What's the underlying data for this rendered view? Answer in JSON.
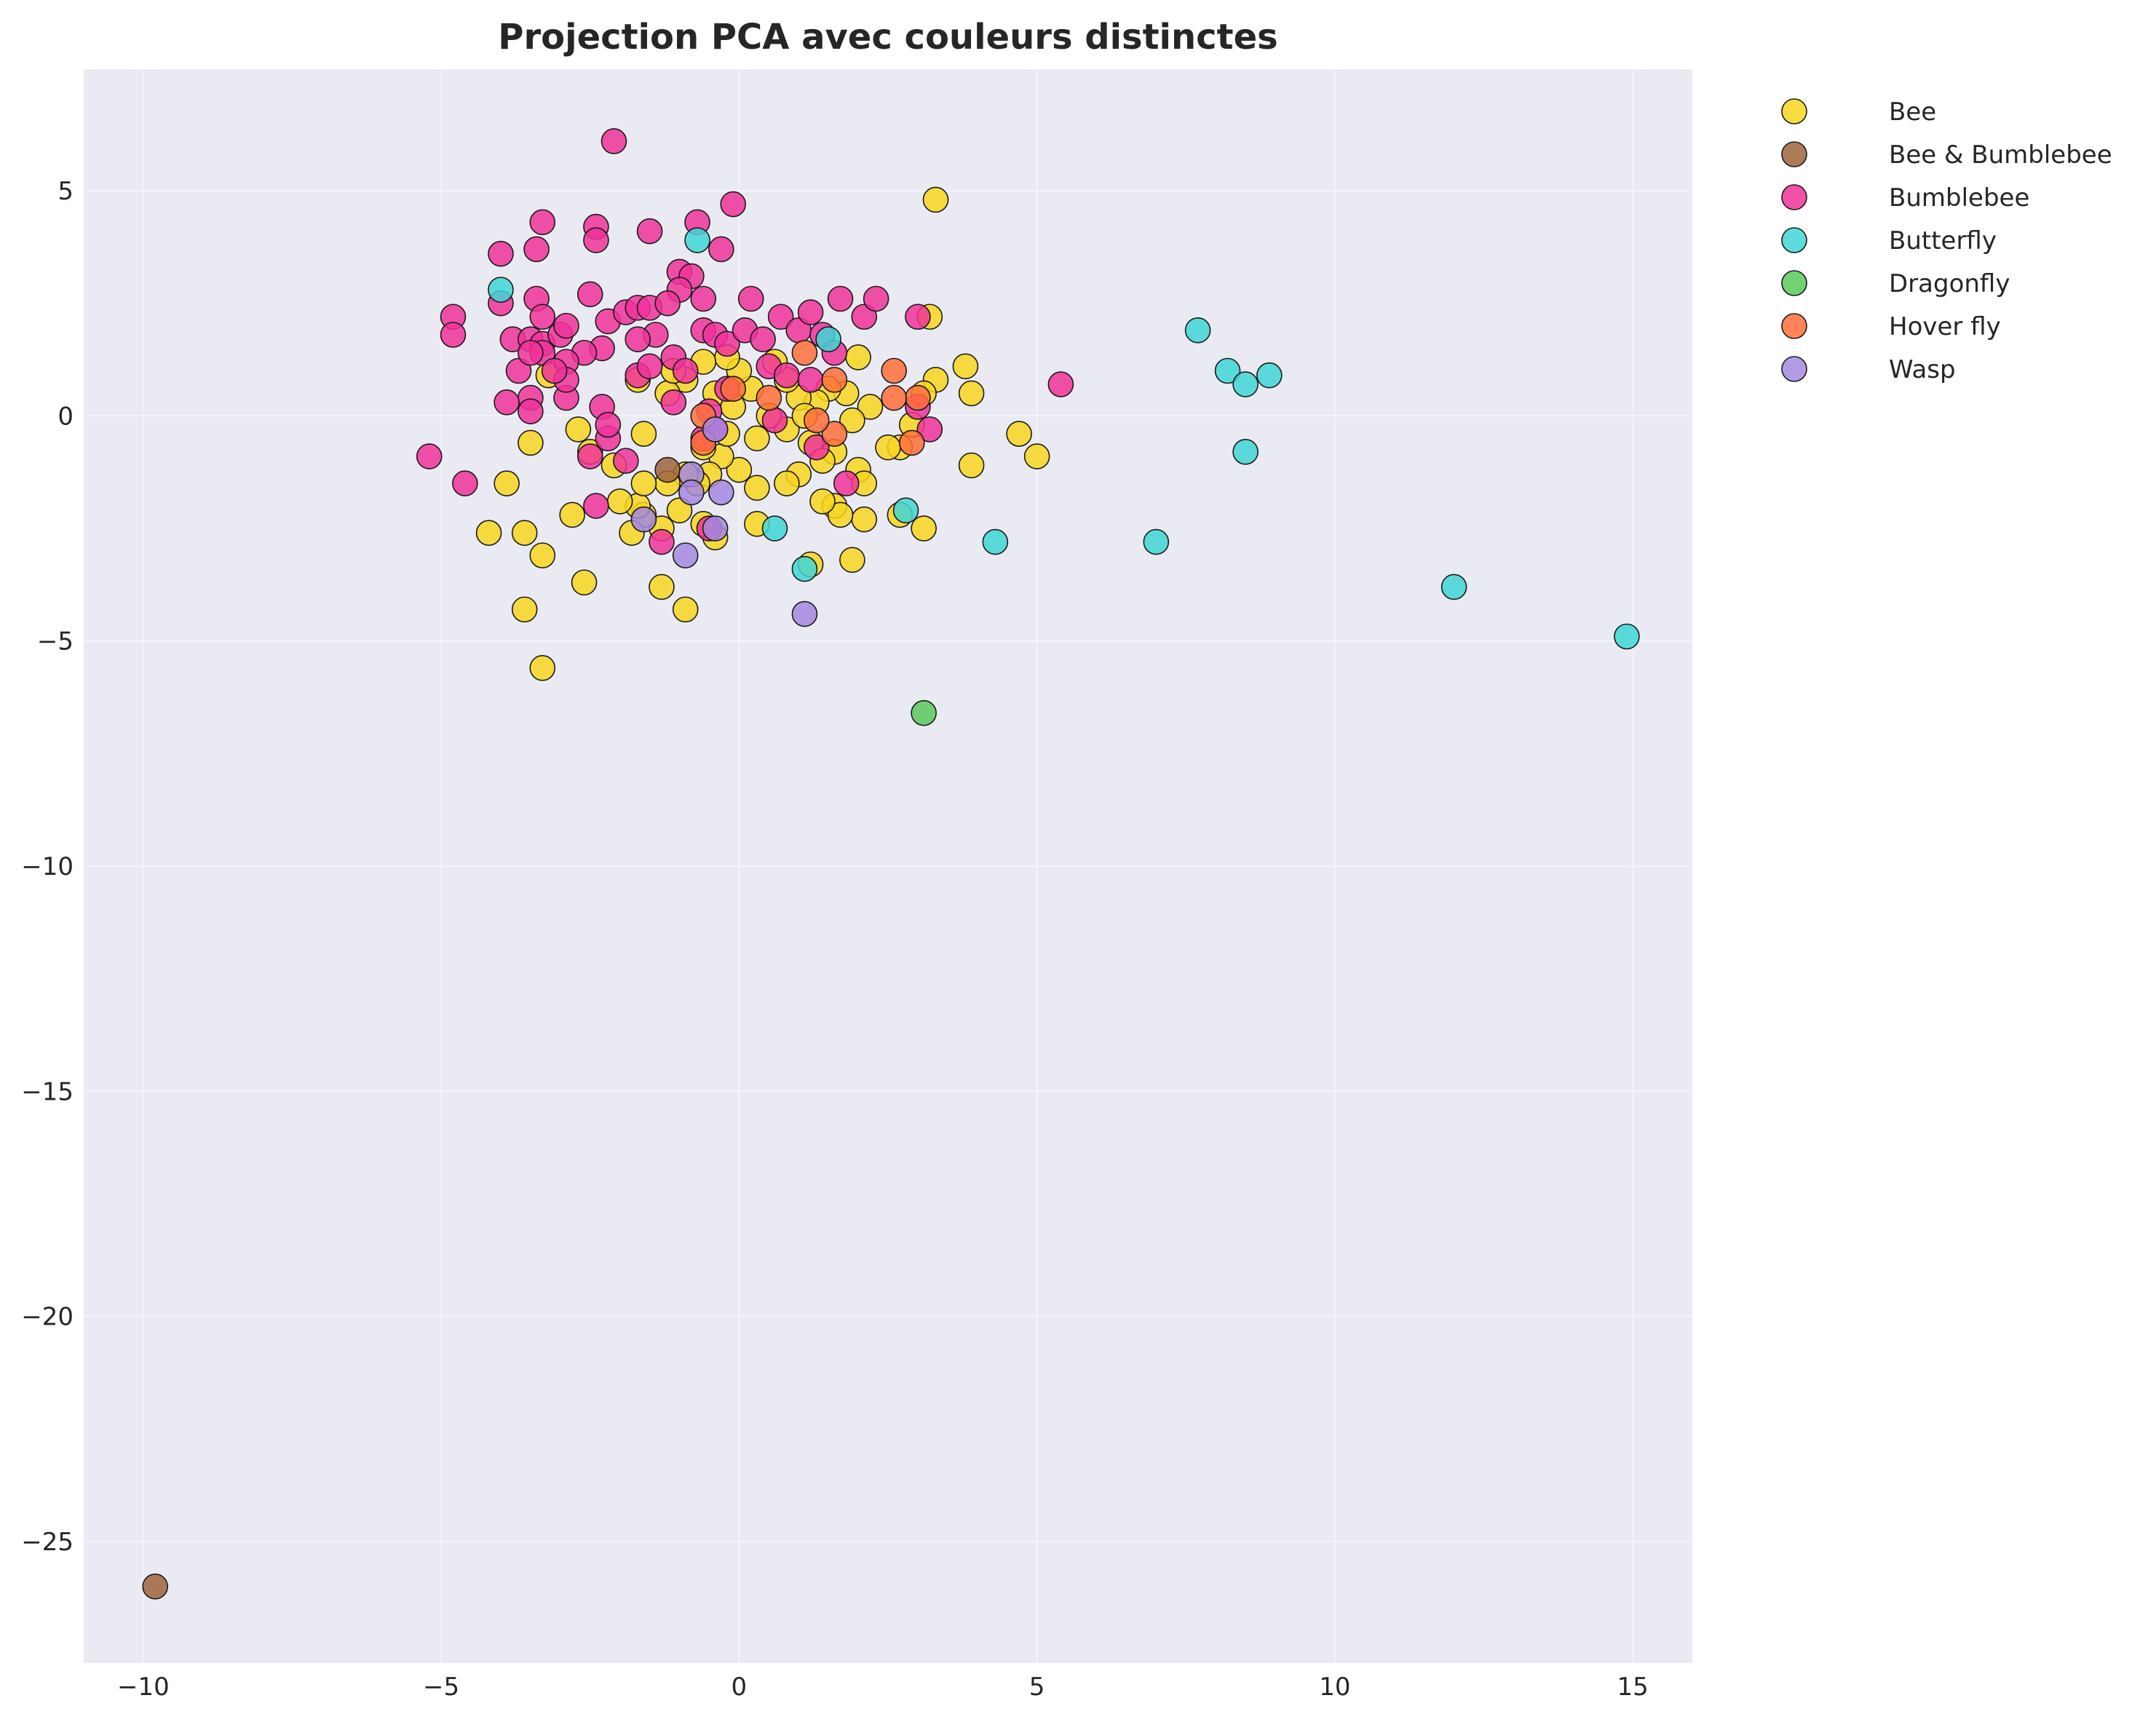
{
  "chart_data": {
    "type": "scatter",
    "title": "Projection PCA avec couleurs distinctes",
    "xlabel": "",
    "ylabel": "",
    "xlim": [
      -11,
      16
    ],
    "ylim": [
      -27.7,
      7.7
    ],
    "xticks": [
      -10,
      -5,
      0,
      5,
      10,
      15
    ],
    "yticks": [
      5,
      0,
      -5,
      -10,
      -15,
      -20,
      -25
    ],
    "xtick_labels": [
      "−10",
      "−5",
      "0",
      "5",
      "10",
      "15"
    ],
    "ytick_labels": [
      "5",
      "0",
      "−5",
      "−10",
      "−15",
      "−20",
      "−25"
    ],
    "grid": true,
    "legend_position": "outside-top-right",
    "background_color": "#eaeaf2",
    "series": [
      {
        "name": "Bee",
        "color": "#f7d61f",
        "points": [
          [
            3.3,
            4.8
          ],
          [
            3.2,
            2.2
          ],
          [
            3.8,
            1.1
          ],
          [
            3.9,
            0.5
          ],
          [
            3.3,
            0.8
          ],
          [
            3.1,
            0.5
          ],
          [
            4.7,
            -0.4
          ],
          [
            5.0,
            -0.9
          ],
          [
            3.9,
            -1.1
          ],
          [
            2.9,
            -0.2
          ],
          [
            2.7,
            -0.7
          ],
          [
            2.5,
            -0.7
          ],
          [
            2.2,
            0.2
          ],
          [
            2.0,
            1.3
          ],
          [
            1.8,
            0.5
          ],
          [
            1.5,
            0.6
          ],
          [
            1.3,
            0.3
          ],
          [
            1.0,
            0.4
          ],
          [
            0.8,
            0.8
          ],
          [
            0.6,
            1.2
          ],
          [
            0.2,
            0.6
          ],
          [
            0.0,
            1.0
          ],
          [
            -0.2,
            1.3
          ],
          [
            -0.4,
            0.5
          ],
          [
            -0.6,
            1.2
          ],
          [
            -0.9,
            0.8
          ],
          [
            -1.2,
            0.5
          ],
          [
            -1.7,
            0.8
          ],
          [
            -0.1,
            0.2
          ],
          [
            0.3,
            -0.5
          ],
          [
            0.8,
            -0.3
          ],
          [
            1.2,
            -0.6
          ],
          [
            1.6,
            -0.8
          ],
          [
            2.0,
            -1.2
          ],
          [
            2.1,
            -1.5
          ],
          [
            1.4,
            -1.0
          ],
          [
            1.0,
            -1.3
          ],
          [
            0.8,
            -1.5
          ],
          [
            0.3,
            -1.6
          ],
          [
            0.0,
            -1.2
          ],
          [
            -0.3,
            -0.9
          ],
          [
            -0.5,
            -1.3
          ],
          [
            -0.6,
            -0.7
          ],
          [
            -0.7,
            -1.5
          ],
          [
            -0.9,
            -1.3
          ],
          [
            -1.2,
            -1.5
          ],
          [
            -1.3,
            -2.5
          ],
          [
            -1.6,
            -2.2
          ],
          [
            -1.7,
            -2.0
          ],
          [
            -1.8,
            -2.6
          ],
          [
            -2.0,
            -1.9
          ],
          [
            -2.1,
            -1.1
          ],
          [
            -1.6,
            -1.5
          ],
          [
            -1.6,
            -0.4
          ],
          [
            -2.5,
            -0.8
          ],
          [
            -2.7,
            -0.3
          ],
          [
            -2.8,
            -2.2
          ],
          [
            -3.3,
            -3.1
          ],
          [
            -3.6,
            -2.6
          ],
          [
            -3.9,
            -1.5
          ],
          [
            -4.2,
            -2.6
          ],
          [
            -3.5,
            -0.6
          ],
          [
            -2.6,
            -3.7
          ],
          [
            -3.6,
            -4.3
          ],
          [
            -1.3,
            -3.8
          ],
          [
            -0.9,
            -4.3
          ],
          [
            -0.4,
            -2.7
          ],
          [
            0.3,
            -2.4
          ],
          [
            1.2,
            -3.3
          ],
          [
            1.6,
            -2.0
          ],
          [
            1.9,
            -3.2
          ],
          [
            2.1,
            -2.3
          ],
          [
            1.7,
            -2.2
          ],
          [
            1.4,
            -1.9
          ],
          [
            2.7,
            -2.2
          ],
          [
            3.1,
            -2.5
          ],
          [
            -3.3,
            -5.6
          ],
          [
            -1.0,
            -2.1
          ],
          [
            -0.6,
            -2.4
          ],
          [
            0.5,
            0.0
          ],
          [
            1.1,
            0.0
          ],
          [
            1.9,
            -0.1
          ],
          [
            -0.2,
            -0.4
          ],
          [
            -1.1,
            1.0
          ],
          [
            -3.2,
            0.9
          ]
        ]
      },
      {
        "name": "Bee & Bumblebee",
        "color": "#a0643c",
        "points": [
          [
            -9.8,
            -26.0
          ],
          [
            -1.2,
            -1.2
          ]
        ]
      },
      {
        "name": "Bumblebee",
        "color": "#f0329a",
        "points": [
          [
            -2.1,
            6.1
          ],
          [
            -0.1,
            4.7
          ],
          [
            -2.4,
            4.2
          ],
          [
            -3.3,
            4.3
          ],
          [
            -1.5,
            4.1
          ],
          [
            -0.7,
            4.3
          ],
          [
            -2.4,
            3.9
          ],
          [
            -3.4,
            3.7
          ],
          [
            -4.0,
            3.6
          ],
          [
            -0.3,
            3.7
          ],
          [
            -1.0,
            3.2
          ],
          [
            -0.8,
            3.1
          ],
          [
            -1.0,
            2.8
          ],
          [
            -0.6,
            2.6
          ],
          [
            0.2,
            2.6
          ],
          [
            -2.5,
            2.7
          ],
          [
            -3.4,
            2.6
          ],
          [
            -3.3,
            2.2
          ],
          [
            -4.0,
            2.5
          ],
          [
            -4.8,
            2.2
          ],
          [
            -4.8,
            1.8
          ],
          [
            -3.8,
            1.7
          ],
          [
            -3.5,
            1.7
          ],
          [
            -3.3,
            1.6
          ],
          [
            -3.0,
            1.8
          ],
          [
            -2.9,
            2.0
          ],
          [
            -2.2,
            2.1
          ],
          [
            -1.9,
            2.3
          ],
          [
            -1.7,
            2.4
          ],
          [
            -1.5,
            2.4
          ],
          [
            -1.2,
            2.5
          ],
          [
            -1.4,
            1.8
          ],
          [
            -1.7,
            1.7
          ],
          [
            -2.3,
            1.5
          ],
          [
            -2.6,
            1.4
          ],
          [
            -2.9,
            1.2
          ],
          [
            -3.3,
            1.4
          ],
          [
            -3.7,
            1.0
          ],
          [
            -3.5,
            0.4
          ],
          [
            -3.9,
            0.3
          ],
          [
            -3.5,
            0.1
          ],
          [
            -2.9,
            0.4
          ],
          [
            -2.9,
            0.8
          ],
          [
            -2.3,
            0.2
          ],
          [
            -1.7,
            0.9
          ],
          [
            -1.5,
            1.1
          ],
          [
            -1.1,
            1.3
          ],
          [
            -0.9,
            1.0
          ],
          [
            -0.6,
            1.9
          ],
          [
            -0.4,
            1.8
          ],
          [
            -0.2,
            1.6
          ],
          [
            0.1,
            1.9
          ],
          [
            0.4,
            1.7
          ],
          [
            0.7,
            2.2
          ],
          [
            1.0,
            1.9
          ],
          [
            1.2,
            2.3
          ],
          [
            1.4,
            1.8
          ],
          [
            1.6,
            1.4
          ],
          [
            1.7,
            2.6
          ],
          [
            2.1,
            2.2
          ],
          [
            2.3,
            2.6
          ],
          [
            3.0,
            2.2
          ],
          [
            0.5,
            1.1
          ],
          [
            0.8,
            0.9
          ],
          [
            1.2,
            0.8
          ],
          [
            -0.2,
            0.6
          ],
          [
            -0.5,
            0.1
          ],
          [
            -0.6,
            -0.5
          ],
          [
            -0.4,
            -0.3
          ],
          [
            0.6,
            -0.1
          ],
          [
            1.3,
            -0.7
          ],
          [
            1.8,
            -1.5
          ],
          [
            3.0,
            0.2
          ],
          [
            3.2,
            -0.3
          ],
          [
            5.4,
            0.7
          ],
          [
            -5.2,
            -0.9
          ],
          [
            -4.6,
            -1.5
          ],
          [
            -2.5,
            -0.9
          ],
          [
            -2.2,
            -0.5
          ],
          [
            -1.9,
            -1.0
          ],
          [
            -2.4,
            -2.0
          ],
          [
            -1.3,
            -2.8
          ],
          [
            -0.5,
            -2.5
          ],
          [
            -1.1,
            0.3
          ],
          [
            -3.5,
            1.4
          ],
          [
            -3.1,
            1.0
          ],
          [
            -2.2,
            -0.2
          ]
        ]
      },
      {
        "name": "Butterfly",
        "color": "#3fd6d6",
        "points": [
          [
            -4.0,
            2.8
          ],
          [
            -0.7,
            3.9
          ],
          [
            1.5,
            1.7
          ],
          [
            7.7,
            1.9
          ],
          [
            8.2,
            1.0
          ],
          [
            8.5,
            0.7
          ],
          [
            8.9,
            0.9
          ],
          [
            8.5,
            -0.8
          ],
          [
            4.3,
            -2.8
          ],
          [
            7.0,
            -2.8
          ],
          [
            12.0,
            -3.8
          ],
          [
            14.9,
            -4.9
          ],
          [
            2.8,
            -2.1
          ],
          [
            1.1,
            -3.4
          ],
          [
            0.6,
            -2.5
          ]
        ]
      },
      {
        "name": "Dragonfly",
        "color": "#58c95a",
        "points": [
          [
            3.1,
            -6.6
          ]
        ]
      },
      {
        "name": "Hover fly",
        "color": "#ff6e3a",
        "points": [
          [
            2.6,
            1.0
          ],
          [
            1.6,
            0.8
          ],
          [
            1.1,
            1.4
          ],
          [
            3.0,
            0.4
          ],
          [
            2.9,
            -0.6
          ],
          [
            2.6,
            0.4
          ],
          [
            1.6,
            -0.4
          ],
          [
            1.3,
            -0.1
          ],
          [
            0.5,
            0.4
          ],
          [
            -0.1,
            0.6
          ],
          [
            -0.6,
            0.0
          ],
          [
            -0.6,
            -0.6
          ]
        ]
      },
      {
        "name": "Wasp",
        "color": "#a488e0",
        "points": [
          [
            -0.4,
            -0.3
          ],
          [
            -0.8,
            -1.3
          ],
          [
            -0.8,
            -1.7
          ],
          [
            -0.3,
            -1.7
          ],
          [
            -0.4,
            -2.5
          ],
          [
            -1.6,
            -2.3
          ],
          [
            -0.9,
            -3.1
          ],
          [
            1.1,
            -4.4
          ]
        ]
      }
    ]
  }
}
